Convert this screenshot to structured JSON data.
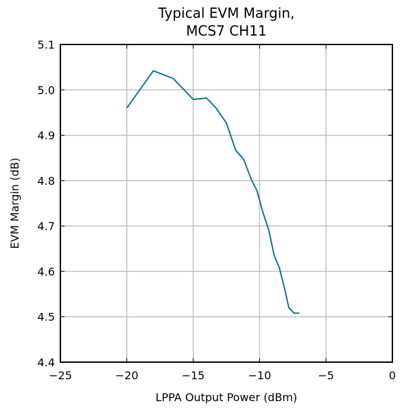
{
  "chart_data": {
    "type": "line",
    "title_line1": "Typical EVM Margin,",
    "title_line2": "MCS7 CH11",
    "xlabel": "LPPA Output Power (dBm)",
    "ylabel": "EVM Margin (dB)",
    "xlim": [
      -25,
      0
    ],
    "ylim": [
      4.4,
      5.1
    ],
    "xticks": [
      "−25",
      "−20",
      "−15",
      "−10",
      "−5",
      "0"
    ],
    "xtick_values": [
      -25,
      -20,
      -15,
      -10,
      -5,
      0
    ],
    "yticks": [
      "4.4",
      "4.5",
      "4.6",
      "4.7",
      "4.8",
      "4.9",
      "5.0",
      "5.1"
    ],
    "ytick_values": [
      4.4,
      4.5,
      4.6,
      4.7,
      4.8,
      4.9,
      5.0,
      5.1
    ],
    "grid": true,
    "line_color": "#11738f",
    "grid_color": "#bfbfbf",
    "series": [
      {
        "x": [
          -20.0,
          -18.0,
          -16.5,
          -15.0,
          -14.0,
          -13.3,
          -12.5,
          -11.8,
          -11.2,
          -10.6,
          -10.2,
          -9.8,
          -9.3,
          -8.9,
          -8.5,
          -8.1,
          -7.8,
          -7.4,
          -7.0
        ],
        "y": [
          4.96,
          5.042,
          5.025,
          4.979,
          4.982,
          4.961,
          4.927,
          4.867,
          4.847,
          4.801,
          4.778,
          4.735,
          4.69,
          4.635,
          4.607,
          4.56,
          4.52,
          4.508,
          4.508
        ]
      }
    ]
  }
}
